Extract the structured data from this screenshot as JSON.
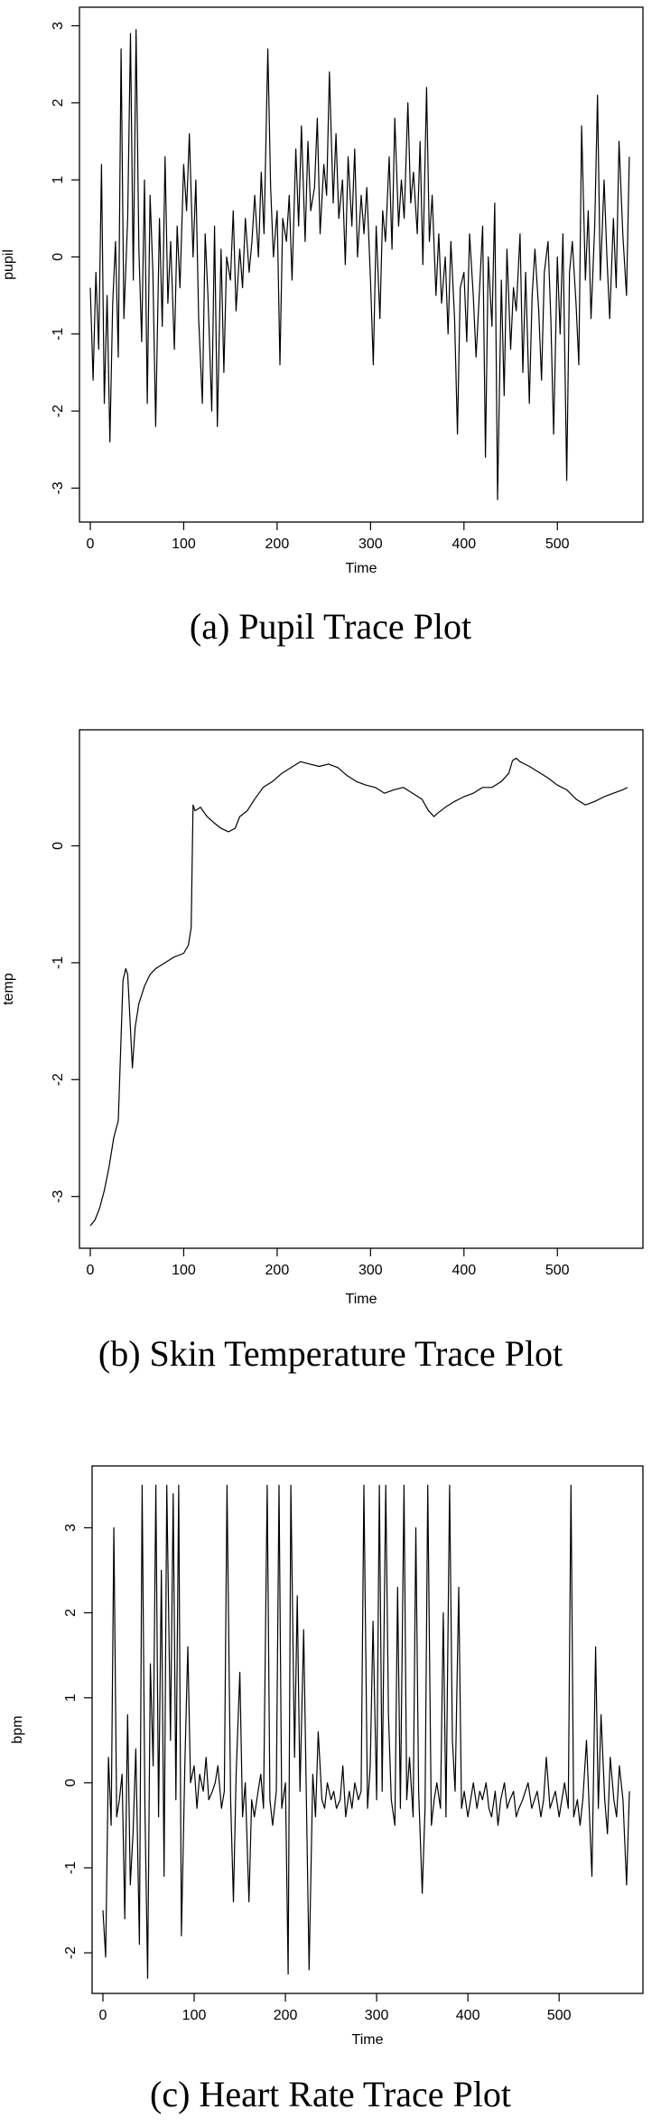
{
  "chart_data": [
    {
      "type": "line",
      "caption": "(a) Pupil Trace Plot",
      "xlabel": "Time",
      "ylabel": "pupil",
      "xlim": [
        0,
        580
      ],
      "ylim": [
        -3.3,
        3.1
      ],
      "xticks": [
        "0",
        "100",
        "200",
        "300",
        "400",
        "500"
      ],
      "yticks": [
        "-3",
        "-2",
        "-1",
        "0",
        "1",
        "2",
        "3"
      ],
      "grid": false,
      "series": [
        {
          "x": [
            0,
            3,
            6,
            9,
            12,
            15,
            18,
            21,
            24,
            27,
            30,
            33,
            36,
            40,
            43,
            46,
            49,
            52,
            55,
            58,
            61,
            64,
            67,
            70,
            74,
            77,
            80,
            83,
            86,
            90,
            93,
            96,
            100,
            103,
            106,
            110,
            113,
            116,
            120,
            123,
            126,
            130,
            133,
            136,
            140,
            143,
            146,
            150,
            153,
            156,
            160,
            163,
            166,
            170,
            173,
            176,
            180,
            183,
            186,
            190,
            193,
            196,
            200,
            203,
            206,
            210,
            213,
            216,
            220,
            223,
            226,
            230,
            233,
            236,
            240,
            243,
            246,
            250,
            253,
            256,
            260,
            263,
            266,
            270,
            273,
            276,
            280,
            283,
            286,
            290,
            293,
            296,
            300,
            303,
            306,
            310,
            313,
            316,
            320,
            323,
            326,
            330,
            333,
            336,
            340,
            343,
            346,
            350,
            353,
            356,
            360,
            363,
            366,
            370,
            373,
            376,
            380,
            383,
            386,
            390,
            393,
            396,
            400,
            403,
            406,
            410,
            413,
            416,
            420,
            423,
            426,
            430,
            433,
            436,
            440,
            443,
            446,
            450,
            453,
            456,
            460,
            463,
            466,
            470,
            473,
            476,
            480,
            483,
            486,
            490,
            493,
            496,
            500,
            503,
            506,
            510,
            513,
            516,
            520,
            523,
            526,
            530,
            533,
            536,
            540,
            543,
            546,
            550,
            553,
            556,
            560,
            563,
            566,
            570,
            574,
            577
          ],
          "y": [
            -0.4,
            -1.6,
            -0.2,
            -1.2,
            1.2,
            -1.9,
            -0.5,
            -2.4,
            -0.6,
            0.2,
            -1.3,
            2.7,
            -0.8,
            0.5,
            2.9,
            -0.3,
            2.95,
            0.1,
            -1.1,
            1.0,
            -1.9,
            0.8,
            -0.2,
            -2.2,
            0.5,
            -0.9,
            1.3,
            -0.6,
            0.2,
            -1.2,
            0.4,
            -0.4,
            1.2,
            0.6,
            1.6,
            0.0,
            1.0,
            -0.8,
            -1.9,
            0.3,
            -0.5,
            -2.0,
            0.4,
            -2.2,
            0.1,
            -1.5,
            0.0,
            -0.3,
            0.6,
            -0.7,
            0.1,
            -0.4,
            0.5,
            -0.2,
            0.2,
            0.8,
            0.0,
            1.1,
            0.3,
            2.7,
            0.9,
            0.0,
            0.6,
            -1.4,
            0.5,
            0.2,
            0.8,
            -0.3,
            1.4,
            0.4,
            1.7,
            0.2,
            1.5,
            0.6,
            0.9,
            1.8,
            0.3,
            1.2,
            0.8,
            2.4,
            0.7,
            1.6,
            0.5,
            1.0,
            -0.1,
            1.3,
            0.4,
            1.4,
            0.0,
            0.8,
            0.3,
            0.9,
            -0.3,
            -1.4,
            0.4,
            -0.8,
            0.6,
            0.2,
            1.3,
            0.1,
            1.8,
            0.4,
            1.0,
            0.5,
            2.0,
            0.7,
            1.1,
            0.3,
            1.5,
            -0.1,
            2.2,
            0.2,
            0.8,
            -0.5,
            0.3,
            -0.6,
            0.0,
            -1.0,
            0.2,
            -0.8,
            -2.3,
            -0.4,
            -0.2,
            -1.1,
            0.3,
            -0.5,
            -1.3,
            -0.6,
            0.4,
            -2.6,
            0.0,
            -0.9,
            0.7,
            -3.15,
            -0.3,
            -1.8,
            0.1,
            -1.2,
            -0.4,
            -0.7,
            0.3,
            -1.5,
            -0.2,
            -1.9,
            -0.5,
            0.1,
            -0.7,
            -1.6,
            -0.2,
            0.2,
            -0.8,
            -2.3,
            0.0,
            -1.0,
            0.3,
            -2.9,
            -0.2,
            0.2,
            -0.6,
            -1.4,
            1.7,
            -0.3,
            0.6,
            -0.8,
            0.4,
            2.1,
            -0.3,
            1.0,
            0.0,
            -0.8,
            0.5,
            -0.4,
            1.5,
            0.3,
            -0.5,
            1.3
          ]
        }
      ]
    },
    {
      "type": "line",
      "caption": "(b) Skin Temperature Trace Plot",
      "xlabel": "Time",
      "ylabel": "temp",
      "xlim": [
        0,
        580
      ],
      "ylim": [
        -3.35,
        0.9
      ],
      "xticks": [
        "0",
        "100",
        "200",
        "300",
        "400",
        "500"
      ],
      "yticks": [
        "-3",
        "-2",
        "-1",
        "0"
      ],
      "grid": false,
      "series": [
        {
          "x": [
            0,
            5,
            10,
            15,
            20,
            25,
            30,
            35,
            38,
            40,
            42,
            45,
            48,
            52,
            58,
            64,
            70,
            80,
            90,
            100,
            105,
            108,
            110,
            112,
            118,
            125,
            132,
            140,
            148,
            155,
            160,
            168,
            176,
            185,
            195,
            205,
            215,
            225,
            235,
            245,
            255,
            265,
            275,
            285,
            295,
            305,
            315,
            325,
            335,
            345,
            355,
            362,
            368,
            372,
            380,
            390,
            400,
            410,
            420,
            430,
            440,
            448,
            452,
            456,
            460,
            465,
            470,
            480,
            490,
            500,
            510,
            520,
            530,
            540,
            550,
            560,
            570,
            575
          ],
          "y": [
            -3.25,
            -3.2,
            -3.1,
            -2.95,
            -2.75,
            -2.5,
            -2.35,
            -1.15,
            -1.05,
            -1.1,
            -1.4,
            -1.9,
            -1.55,
            -1.35,
            -1.2,
            -1.1,
            -1.05,
            -1.0,
            -0.95,
            -0.92,
            -0.85,
            -0.7,
            0.35,
            0.3,
            0.33,
            0.25,
            0.2,
            0.15,
            0.12,
            0.15,
            0.25,
            0.3,
            0.4,
            0.5,
            0.55,
            0.62,
            0.67,
            0.72,
            0.7,
            0.68,
            0.7,
            0.67,
            0.6,
            0.55,
            0.52,
            0.5,
            0.45,
            0.48,
            0.5,
            0.45,
            0.4,
            0.3,
            0.25,
            0.28,
            0.33,
            0.38,
            0.42,
            0.45,
            0.5,
            0.5,
            0.55,
            0.62,
            0.73,
            0.75,
            0.72,
            0.7,
            0.68,
            0.63,
            0.58,
            0.52,
            0.48,
            0.4,
            0.35,
            0.38,
            0.42,
            0.45,
            0.48,
            0.5
          ]
        }
      ]
    },
    {
      "type": "line",
      "caption": "(c) Heart Rate Trace Plot",
      "xlabel": "Time",
      "ylabel": "bpm",
      "xlim": [
        0,
        580
      ],
      "ylim": [
        -2.35,
        3.6
      ],
      "xticks": [
        "0",
        "100",
        "200",
        "300",
        "400",
        "500"
      ],
      "yticks": [
        "-2",
        "-1",
        "0",
        "1",
        "2",
        "3"
      ],
      "grid": false,
      "series": [
        {
          "x": [
            0,
            3,
            6,
            9,
            12,
            15,
            18,
            21,
            24,
            27,
            30,
            33,
            36,
            40,
            43,
            46,
            49,
            52,
            55,
            58,
            61,
            64,
            67,
            70,
            74,
            77,
            80,
            83,
            86,
            90,
            93,
            96,
            100,
            103,
            106,
            110,
            113,
            116,
            120,
            123,
            126,
            130,
            133,
            136,
            140,
            143,
            146,
            150,
            153,
            156,
            160,
            163,
            166,
            170,
            173,
            176,
            180,
            183,
            186,
            190,
            193,
            196,
            200,
            203,
            206,
            210,
            213,
            216,
            220,
            223,
            226,
            230,
            233,
            236,
            240,
            243,
            246,
            250,
            253,
            256,
            260,
            263,
            266,
            270,
            273,
            276,
            280,
            283,
            286,
            290,
            293,
            296,
            300,
            303,
            306,
            310,
            313,
            316,
            320,
            323,
            326,
            330,
            333,
            336,
            340,
            343,
            346,
            350,
            353,
            356,
            360,
            363,
            366,
            370,
            373,
            376,
            380,
            383,
            386,
            390,
            393,
            396,
            400,
            403,
            406,
            410,
            413,
            416,
            420,
            423,
            426,
            430,
            433,
            436,
            440,
            443,
            446,
            450,
            453,
            456,
            460,
            463,
            466,
            470,
            473,
            476,
            480,
            483,
            486,
            490,
            493,
            496,
            500,
            503,
            506,
            510,
            513,
            516,
            520,
            523,
            526,
            530,
            533,
            536,
            540,
            543,
            546,
            550,
            553,
            556,
            560,
            563,
            566,
            570,
            574,
            577
          ],
          "y": [
            -1.5,
            -2.05,
            0.3,
            -0.5,
            3.0,
            -0.4,
            -0.2,
            0.1,
            -1.6,
            0.8,
            -1.2,
            -0.6,
            0.4,
            -1.9,
            3.5,
            -0.3,
            -2.3,
            1.4,
            0.2,
            3.5,
            -0.4,
            2.5,
            -1.1,
            3.5,
            0.5,
            3.4,
            -0.2,
            3.5,
            -1.8,
            0.3,
            1.6,
            0.0,
            0.2,
            -0.3,
            0.1,
            -0.1,
            0.3,
            -0.2,
            -0.1,
            0.0,
            0.2,
            -0.3,
            -0.1,
            3.5,
            -0.2,
            -1.4,
            0.1,
            1.3,
            -0.4,
            0.0,
            -1.4,
            -0.2,
            -0.4,
            -0.1,
            0.1,
            -0.3,
            3.5,
            -0.2,
            -0.5,
            -0.1,
            3.5,
            -0.3,
            0.0,
            -2.25,
            3.5,
            0.3,
            2.2,
            -0.1,
            1.8,
            -0.2,
            -2.2,
            0.1,
            -0.4,
            0.6,
            -0.2,
            -0.3,
            0.0,
            -0.2,
            -0.1,
            -0.3,
            -0.2,
            0.2,
            -0.4,
            -0.1,
            -0.3,
            0.0,
            -0.2,
            -0.1,
            3.5,
            -0.3,
            0.2,
            1.9,
            -0.2,
            3.5,
            -0.1,
            3.5,
            0.8,
            -0.2,
            -0.5,
            2.3,
            -0.3,
            3.5,
            -0.2,
            0.3,
            -0.4,
            3.0,
            -0.1,
            -1.3,
            -0.3,
            3.5,
            -0.5,
            -0.2,
            0.0,
            -0.3,
            2.0,
            -0.4,
            3.5,
            0.5,
            -0.1,
            2.3,
            -0.3,
            -0.1,
            -0.4,
            -0.2,
            0.0,
            -0.3,
            -0.1,
            -0.2,
            0.0,
            -0.3,
            -0.4,
            -0.1,
            -0.5,
            -0.2,
            0.0,
            -0.3,
            -0.2,
            -0.1,
            -0.4,
            -0.3,
            -0.2,
            -0.1,
            0.0,
            -0.3,
            -0.2,
            -0.1,
            -0.4,
            -0.2,
            0.3,
            -0.3,
            -0.2,
            -0.1,
            -0.4,
            -0.2,
            0.0,
            -0.3,
            3.5,
            -0.4,
            -0.2,
            -0.5,
            -0.2,
            0.5,
            -0.3,
            -1.1,
            1.6,
            -0.3,
            0.8,
            -0.2,
            -0.6,
            0.3,
            -0.2,
            -0.4,
            0.2,
            -0.2,
            -1.2,
            -0.1
          ]
        }
      ]
    }
  ]
}
